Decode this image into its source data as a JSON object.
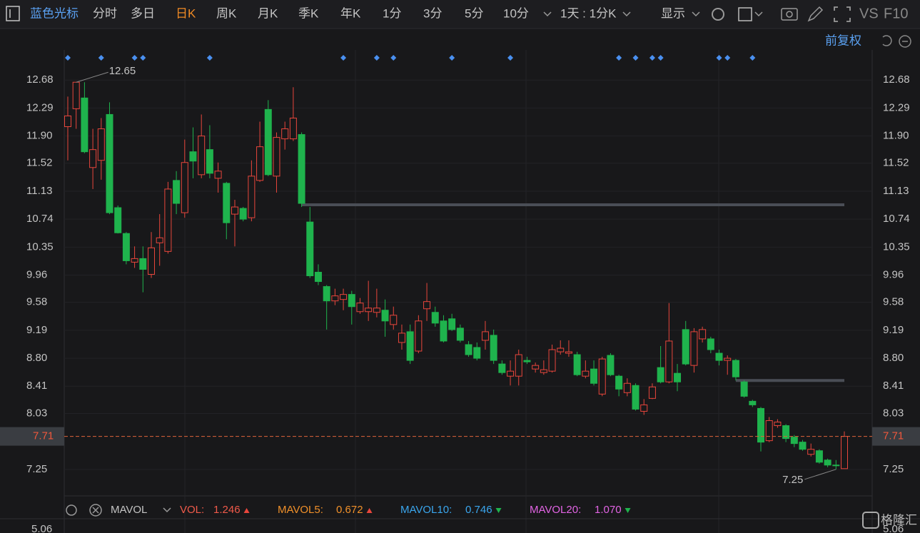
{
  "toolbar": {
    "stock": "蓝色光标",
    "tabs": [
      "分时",
      "多日",
      "日K",
      "周K",
      "月K",
      "季K",
      "年K",
      "1分",
      "3分",
      "5分",
      "10分"
    ],
    "active_tab": 2,
    "period": "1天 : 1分K",
    "display": "显示",
    "vs": "VS",
    "f10": "F10"
  },
  "adjust": "前复权",
  "watermark": "格隆汇",
  "chart_data": {
    "type": "candlestick",
    "open": [
      12.03,
      12.28,
      12.43,
      11.46,
      11.56,
      12.2,
      10.9,
      10.54,
      10.14,
      10.19,
      9.97,
      10.41,
      10.29,
      11.28,
      10.83,
      11.68,
      11.36,
      11.71,
      11.31,
      11.24,
      10.81,
      10.89,
      10.76,
      11.28,
      12.27,
      11.34,
      11.86,
      11.86,
      11.92,
      10.7,
      10.0,
      9.8,
      9.6,
      9.62,
      9.69,
      9.45,
      9.45,
      9.44,
      9.47,
      9.27,
      9.02,
      9.17,
      8.9,
      9.49,
      9.44,
      9.32,
      9.35,
      9.22,
      8.99,
      8.95,
      9.05,
      9.12,
      8.72,
      8.55,
      8.55,
      8.77,
      8.65,
      8.6,
      8.62,
      8.89,
      8.87,
      8.85,
      8.55,
      8.65,
      8.3,
      8.84,
      8.55,
      8.32,
      8.42,
      8.06,
      8.24,
      8.67,
      8.47,
      8.59,
      9.2,
      8.7,
      9.07,
      9.07,
      8.87,
      8.77,
      8.77,
      8.47,
      8.2,
      8.1,
      7.65,
      7.86,
      7.86,
      7.7,
      7.63,
      7.46,
      7.51,
      7.38,
      7.31,
      7.26
    ],
    "high": [
      12.45,
      12.65,
      12.65,
      12.0,
      12.15,
      12.37,
      10.93,
      10.56,
      10.36,
      10.36,
      10.56,
      10.81,
      11.26,
      11.41,
      11.85,
      12.02,
      12.2,
      12.05,
      11.53,
      11.26,
      11.01,
      10.91,
      11.56,
      12.1,
      12.4,
      11.95,
      12.1,
      12.58,
      11.95,
      10.91,
      10.11,
      9.82,
      9.77,
      9.77,
      9.74,
      9.64,
      9.88,
      9.77,
      9.62,
      9.52,
      9.27,
      9.27,
      9.4,
      9.85,
      9.52,
      9.4,
      9.42,
      9.27,
      9.04,
      9.02,
      9.32,
      9.2,
      8.77,
      8.77,
      8.92,
      8.82,
      8.74,
      8.77,
      8.99,
      9.05,
      9.05,
      8.89,
      8.77,
      8.77,
      8.82,
      8.87,
      8.57,
      8.52,
      8.45,
      8.23,
      8.45,
      8.97,
      9.57,
      8.72,
      9.32,
      9.22,
      9.24,
      9.1,
      8.92,
      8.84,
      8.79,
      8.49,
      8.22,
      8.12,
      7.98,
      7.95,
      7.88,
      7.73,
      7.66,
      7.61,
      7.53,
      7.4,
      7.38,
      7.78
    ],
    "low": [
      11.56,
      12.0,
      11.66,
      11.16,
      11.29,
      10.81,
      10.54,
      10.11,
      10.06,
      9.72,
      9.92,
      10.09,
      10.26,
      10.81,
      10.76,
      11.31,
      11.31,
      11.31,
      11.11,
      10.46,
      10.36,
      10.71,
      10.71,
      11.26,
      11.34,
      11.11,
      11.71,
      11.83,
      10.91,
      9.92,
      9.82,
      9.2,
      9.54,
      9.47,
      9.27,
      9.42,
      9.32,
      9.37,
      9.1,
      9.2,
      8.92,
      8.72,
      8.87,
      9.32,
      9.24,
      9.02,
      9.18,
      9.02,
      8.82,
      8.77,
      8.92,
      8.72,
      8.57,
      8.42,
      8.42,
      8.72,
      8.6,
      8.57,
      8.6,
      8.85,
      8.82,
      8.55,
      8.52,
      8.42,
      8.27,
      8.55,
      8.27,
      8.27,
      8.07,
      8.01,
      8.23,
      8.45,
      8.45,
      8.34,
      8.7,
      8.6,
      9.02,
      8.87,
      8.7,
      8.57,
      8.49,
      8.25,
      8.12,
      7.5,
      7.63,
      7.83,
      7.63,
      7.56,
      7.51,
      7.43,
      7.33,
      7.28,
      7.25,
      7.26
    ],
    "close": [
      12.18,
      12.65,
      11.68,
      11.71,
      12.0,
      10.83,
      10.55,
      10.16,
      10.19,
      10.04,
      10.34,
      10.48,
      11.16,
      10.96,
      11.53,
      11.55,
      11.9,
      11.38,
      11.41,
      10.69,
      10.91,
      10.74,
      11.34,
      11.75,
      11.36,
      11.88,
      12.0,
      12.15,
      10.96,
      9.95,
      9.87,
      9.6,
      9.67,
      9.69,
      9.52,
      9.57,
      9.5,
      9.5,
      9.32,
      9.4,
      9.15,
      8.77,
      9.32,
      9.59,
      9.29,
      9.04,
      9.2,
      9.05,
      8.85,
      8.8,
      9.17,
      8.77,
      8.6,
      8.62,
      8.85,
      8.75,
      8.7,
      8.64,
      8.92,
      8.94,
      8.89,
      8.57,
      8.62,
      8.45,
      8.79,
      8.57,
      8.37,
      8.45,
      8.09,
      8.15,
      8.4,
      8.47,
      9.04,
      8.47,
      8.72,
      9.17,
      9.2,
      8.92,
      8.77,
      8.8,
      8.54,
      8.27,
      8.15,
      7.63,
      7.93,
      7.91,
      7.68,
      7.61,
      7.53,
      7.53,
      7.35,
      7.31,
      7.31,
      7.71
    ],
    "up_color": "#e8463c",
    "down_color": "#1fb34d",
    "ylim": [
      6.88,
      13.1
    ],
    "yticks": [
      12.68,
      12.29,
      {
        "value": 11.9,
        "label": "11.90"
      },
      11.52,
      11.13,
      10.74,
      10.35,
      9.96,
      9.58,
      9.19,
      {
        "value": 8.8,
        "label": "8.80"
      },
      8.41,
      8.03,
      7.25
    ],
    "grid": true,
    "last_price": 7.71,
    "max_label": {
      "index": 1,
      "value": 12.65
    },
    "min_label": {
      "index": 92,
      "value": 7.25
    },
    "reference_lines": [
      {
        "value": 10.94,
        "start": 28
      },
      {
        "value": 8.49,
        "start": 80
      }
    ],
    "event_markers": [
      0,
      4,
      8,
      9,
      17,
      33,
      37,
      39,
      46,
      53,
      66,
      68,
      70,
      71,
      78,
      79,
      82
    ]
  },
  "volume_pane": {
    "name": "MAVOL",
    "items": [
      {
        "label": "VOL:",
        "value": "1.246",
        "trend": "up",
        "color": "#f05a4a"
      },
      {
        "label": "MAVOL5:",
        "value": "0.672",
        "trend": "up",
        "color": "#f0902a"
      },
      {
        "label": "MAVOL10:",
        "value": "0.746",
        "trend": "down",
        "color": "#3aa6ee"
      },
      {
        "label": "MAVOL20:",
        "value": "1.070",
        "trend": "down",
        "color": "#e264e4"
      }
    ],
    "axis_top": "5.06"
  }
}
